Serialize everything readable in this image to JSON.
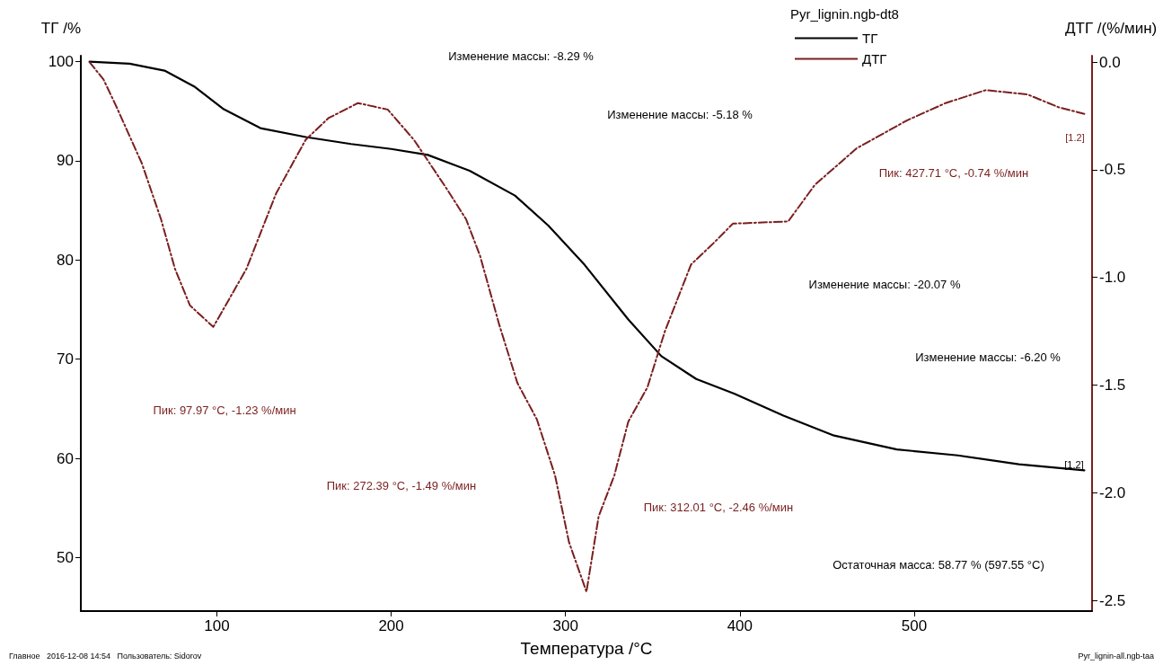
{
  "chart_data": {
    "type": "line",
    "xlabel": "Температура /°C",
    "ylabel": "ТГ /%",
    "y2label": "ДТГ /(%/мин)",
    "legend_title": "Pyr_lignin.ngb-dt8",
    "legend": "top right",
    "grid": false,
    "marker": "none",
    "xlim": [
      22,
      602
    ],
    "xticks": [
      100,
      200,
      300,
      400,
      500
    ],
    "ylim": [
      44.6,
      100.6
    ],
    "yticks": [
      50,
      60,
      70,
      80,
      90,
      100
    ],
    "y2lim": [
      -2.55,
      0.03
    ],
    "y2ticks": [
      {
        "value": 0,
        "label": "0.0"
      },
      -0.5,
      {
        "value": -1,
        "label": "-1.0"
      },
      -1.5,
      {
        "value": -2,
        "label": "-2.0"
      },
      -2.5
    ],
    "series": [
      {
        "name": "ТГ",
        "color": "#000000",
        "line_style": "solid",
        "x": [
          27,
          50,
          70,
          87,
          104,
          125,
          151,
          177,
          200,
          221,
          245,
          271,
          290,
          311,
          336,
          355,
          375,
          397,
          425,
          454,
          490,
          525,
          560,
          597.55
        ],
        "values": [
          100,
          99.8,
          99.1,
          97.5,
          95.2,
          93.3,
          92.4,
          91.7,
          91.2,
          90.6,
          89.0,
          86.5,
          83.5,
          79.5,
          74.0,
          70.3,
          68.0,
          66.5,
          64.3,
          62.3,
          60.9,
          60.3,
          59.4,
          58.8
        ]
      },
      {
        "name": "ДТГ",
        "color": "#7a1f1f",
        "line_style": "dashed",
        "axis": "y2",
        "x": [
          27,
          35,
          42.6,
          57,
          68,
          76,
          84.6,
          97.97,
          117,
          134,
          151,
          164,
          181,
          198,
          213,
          232,
          243,
          251,
          262,
          272.39,
          283.6,
          294,
          302,
          312.01,
          319,
          328,
          336,
          347,
          357,
          372,
          385,
          396,
          427.71,
          443,
          467,
          496,
          518,
          541,
          565,
          583,
          597.55
        ],
        "values": [
          0,
          -0.08,
          -0.21,
          -0.47,
          -0.73,
          -0.96,
          -1.13,
          -1.23,
          -0.96,
          -0.61,
          -0.36,
          -0.26,
          -0.19,
          -0.22,
          -0.36,
          -0.59,
          -0.73,
          -0.9,
          -1.22,
          -1.49,
          -1.66,
          -1.92,
          -2.23,
          -2.46,
          -2.11,
          -1.92,
          -1.67,
          -1.51,
          -1.25,
          -0.94,
          -0.84,
          -0.75,
          -0.74,
          -0.57,
          -0.4,
          -0.27,
          -0.19,
          -0.13,
          -0.15,
          -0.21,
          -0.24
        ]
      }
    ],
    "annotations": [
      "Изменение массы: -8.29 %",
      "Изменение массы: -5.18 %",
      "Изменение массы: -20.07 %",
      "Изменение массы: -6.20 %",
      "Пик: 97.97 °C, -1.23 %/мин",
      "Пик: 272.39 °C, -1.49 %/мин",
      "Пик: 312.01 °C, -2.46 %/мин",
      "Пик: 427.71 °C, -0.74 %/мин",
      "Остаточная масса: 58.77 % (597.55 °C)",
      "[1.2]",
      "[1.2]",
      "Главное   2016-12-08 14:54   Пользователь: Sidorov",
      "Pyr_lignin-all.ngb-taa"
    ]
  }
}
